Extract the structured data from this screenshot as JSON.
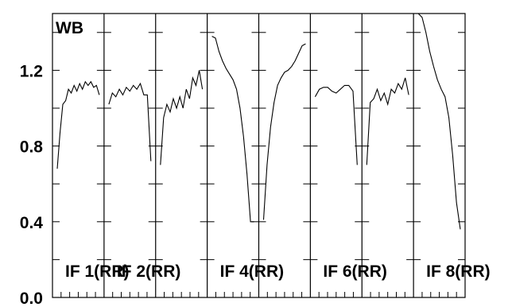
{
  "chart_data": {
    "type": "line",
    "title": "WB",
    "xlabel": "",
    "ylabel": "",
    "ylim": [
      0.0,
      1.5
    ],
    "yticks": [
      0.0,
      0.4,
      0.8,
      1.2
    ],
    "ytick_labels": [
      "0.0",
      "0.4",
      "0.8",
      "1.2"
    ],
    "grid": false,
    "legend": "none",
    "panels": [
      {
        "label": "IF 1(RR)",
        "y": [
          0.68,
          0.87,
          1.02,
          1.04,
          1.1,
          1.08,
          1.12,
          1.09,
          1.13,
          1.1,
          1.14,
          1.12,
          1.14,
          1.11,
          1.12,
          1.07
        ]
      },
      {
        "label": "IF 2(RR)",
        "y": [
          1.02,
          1.08,
          1.06,
          1.1,
          1.07,
          1.11,
          1.09,
          1.12,
          1.1,
          1.13,
          1.07,
          1.07,
          0.72
        ]
      },
      {
        "label": "",
        "y": [
          0.7,
          0.95,
          1.02,
          0.98,
          1.05,
          1.0,
          1.06,
          1.0,
          1.1,
          1.05,
          1.16,
          1.12,
          1.2,
          1.1
        ]
      },
      {
        "label": "IF 4(RR)",
        "y": [
          1.38,
          1.37,
          1.3,
          1.25,
          1.21,
          1.18,
          1.15,
          1.1,
          1.0,
          0.85,
          0.65,
          0.4,
          0.4
        ]
      },
      {
        "label": "",
        "y": [
          0.41,
          0.7,
          0.9,
          1.03,
          1.12,
          1.16,
          1.19,
          1.2,
          1.22,
          1.25,
          1.29,
          1.33,
          1.34
        ]
      },
      {
        "label": "IF 6(RR)",
        "y": [
          1.06,
          1.1,
          1.11,
          1.11,
          1.09,
          1.08,
          1.1,
          1.12,
          1.12,
          1.09,
          0.7
        ]
      },
      {
        "label": "",
        "y": [
          0.7,
          1.03,
          1.05,
          1.1,
          1.04,
          1.08,
          1.02,
          1.1,
          1.08,
          1.13,
          1.1,
          1.16,
          1.07
        ]
      },
      {
        "label": "IF 8(RR)",
        "y": [
          1.5,
          1.48,
          1.4,
          1.3,
          1.22,
          1.15,
          1.1,
          1.06,
          0.95,
          0.75,
          0.5,
          0.36
        ]
      }
    ]
  }
}
